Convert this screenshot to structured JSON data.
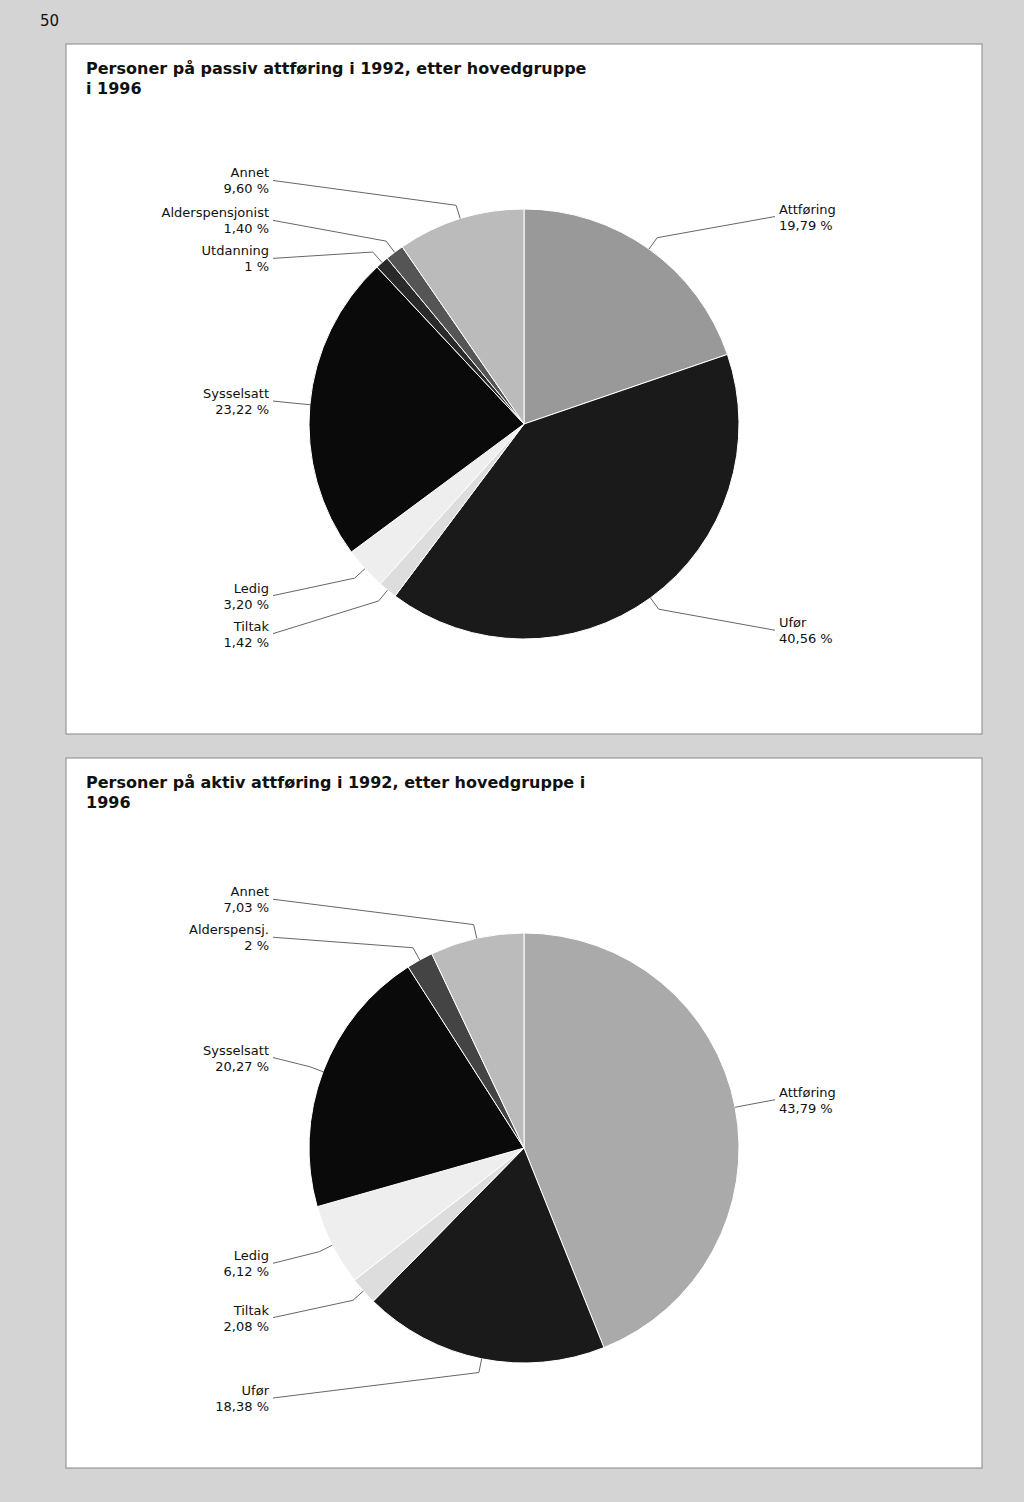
{
  "page_number": "50",
  "chart_data": [
    {
      "type": "pie",
      "title": "Personer på passiv attføring i 1992, etter hovedgruppe\ni 1996",
      "categories": [
        "Attføring",
        "Ufør",
        "Tiltak",
        "Ledig",
        "Sysselsatt",
        "Utdanning",
        "Alderspensjonist",
        "Annet"
      ],
      "values": [
        19.79,
        40.56,
        1.42,
        3.2,
        23.22,
        1.0,
        1.4,
        9.6
      ],
      "value_labels": [
        "19,79 %",
        "40,56 %",
        "1,42 %",
        "3,20 %",
        "23,22 %",
        "1 %",
        "1,40 %",
        "9,60 %"
      ],
      "colors": [
        "#999999",
        "#1a1a1a",
        "#dddddd",
        "#eeeeee",
        "#0a0a0a",
        "#2a2a2a",
        "#555555",
        "#bbbbbb"
      ],
      "data_labels": true
    },
    {
      "type": "pie",
      "title": "Personer på aktiv attføring i 1992, etter hovedgruppe i\n1996",
      "categories": [
        "Attføring",
        "Ufør",
        "Tiltak",
        "Ledig",
        "Sysselsatt",
        "Alderspensj.",
        "Annet"
      ],
      "values": [
        43.79,
        18.38,
        2.08,
        6.12,
        20.27,
        2.0,
        7.03
      ],
      "value_labels": [
        "43,79 %",
        "18,38 %",
        "2,08 %",
        "6,12 %",
        "20,27 %",
        "2 %",
        "7,03 %"
      ],
      "colors": [
        "#aaaaaa",
        "#1a1a1a",
        "#dddddd",
        "#eeeeee",
        "#0a0a0a",
        "#444444",
        "#bbbbbb"
      ],
      "data_labels": true
    }
  ]
}
